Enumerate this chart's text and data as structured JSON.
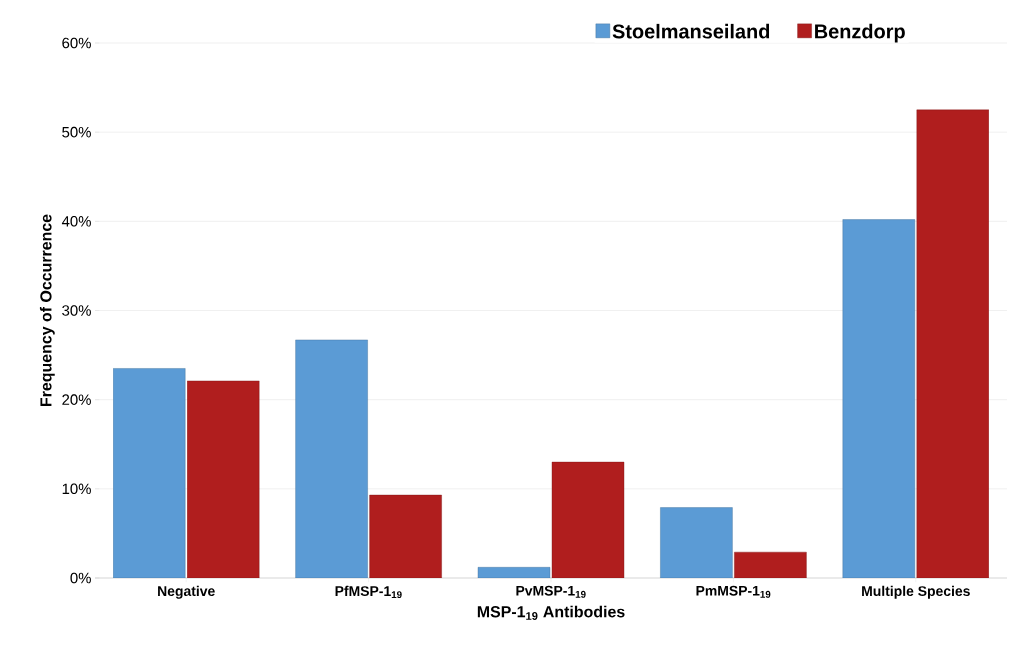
{
  "chart_data": {
    "type": "bar",
    "xlabel": "MSP-1$_{19}$ Antibodies",
    "ylabel": "Frequency of Occurrence",
    "categories": [
      "Negative",
      "PfMSP-1$_{19}$",
      "PvMSP-1$_{19}$",
      "PmMSP-1$_{19}$",
      "Multiple Species"
    ],
    "series": [
      {
        "name": "Stoelmanseiland",
        "color": "#5b9bd5",
        "values": [
          23.5,
          26.7,
          1.2,
          7.9,
          40.2
        ]
      },
      {
        "name": "Benzdorp",
        "color": "#b01e1e",
        "values": [
          22.1,
          9.3,
          13.0,
          2.9,
          52.5
        ]
      }
    ],
    "ylim": [
      0,
      60
    ],
    "yticks": [
      {
        "value": 0,
        "label": "0%"
      },
      {
        "value": 10,
        "label": "10%"
      },
      {
        "value": 20,
        "label": "20%"
      },
      {
        "value": 30,
        "label": "30%"
      },
      {
        "value": 40,
        "label": "40%"
      },
      {
        "value": 50,
        "label": "50%"
      },
      {
        "value": 60,
        "label": "60%"
      }
    ],
    "grid": "y",
    "legend": "top"
  }
}
